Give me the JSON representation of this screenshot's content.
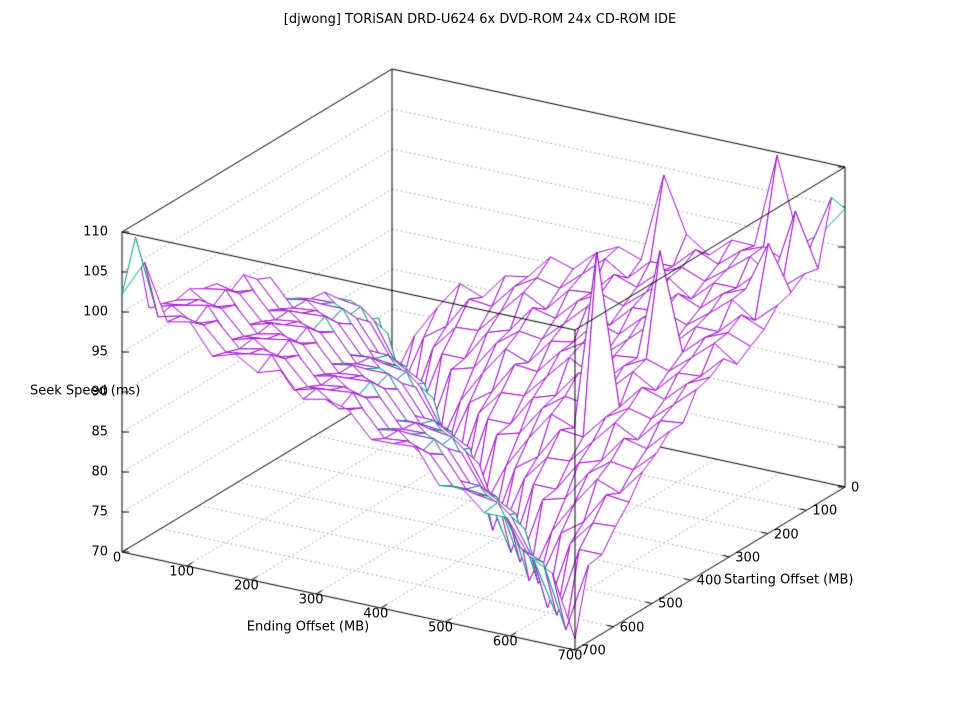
{
  "figure": {
    "title": "[djwong] TORiSAN DRD-U624 6x DVD-ROM 24x CD-ROM IDE",
    "background": "#ffffff"
  },
  "axes": {
    "x": {
      "label": "Ending Offset (MB)",
      "min": 0,
      "max": 700,
      "ticks": [
        0,
        100,
        200,
        300,
        400,
        500,
        600,
        700
      ]
    },
    "y": {
      "label": "Starting Offset (MB)",
      "min": 0,
      "max": 700,
      "ticks": [
        0,
        100,
        200,
        300,
        400,
        500,
        600,
        700
      ]
    },
    "z": {
      "label": "Seek Speed (ms)",
      "min": 70,
      "max": 110,
      "ticks": [
        70,
        75,
        80,
        85,
        90,
        95,
        100,
        105,
        110
      ]
    }
  },
  "style": {
    "surface_top_color": "#a313d3",
    "surface_under_color": "#00a878",
    "border_color": "#000000",
    "grid_color": "#9a9a9a",
    "text_color": "#000000",
    "background": "#ffffff"
  },
  "chart_data": {
    "type": "surface",
    "title": "[djwong] TORiSAN DRD-U624 6x DVD-ROM 24x CD-ROM IDE",
    "xlabel": "Ending Offset (MB)",
    "ylabel": "Starting Offset (MB)",
    "zlabel": "Seek Speed (ms)",
    "xlim": [
      0,
      700
    ],
    "ylim": [
      0,
      700
    ],
    "zlim": [
      70,
      110
    ],
    "grid": true,
    "legend": "none",
    "x_mb": [
      0,
      35,
      70,
      105,
      140,
      175,
      210,
      245,
      280,
      315,
      350,
      385,
      420,
      455,
      490,
      525,
      560,
      595,
      630,
      665,
      700
    ],
    "y_mb": [
      0,
      35,
      70,
      105,
      140,
      175,
      210,
      245,
      280,
      315,
      350,
      385,
      420,
      455,
      490,
      525,
      560,
      595,
      630,
      665,
      700
    ],
    "z_ms_by_start_then_end": [
      [
        70.9,
        77.3,
        81.4,
        85.0,
        83.9,
        87.2,
        87.7,
        90.8,
        89.9,
        92.5,
        93.9,
        92.9,
        104.1,
        97.3,
        95.3,
        97.8,
        97.7,
        109.6,
        99.0,
        101.2,
        104.8
      ],
      [
        79.9,
        71.6,
        78.7,
        80.7,
        84.7,
        84.4,
        87.5,
        89.2,
        88.5,
        90.9,
        93.4,
        91.6,
        94.3,
        94.3,
        97.0,
        95.8,
        98.1,
        99.2,
        98.0,
        100.0,
        107.2
      ],
      [
        80.7,
        79.6,
        70.4,
        79.0,
        82.2,
        82.4,
        85.4,
        88.4,
        86.9,
        89.9,
        90.2,
        93.1,
        92.1,
        94.6,
        95.8,
        94.7,
        96.8,
        99.0,
        96.9,
        105.9,
        99.3
      ],
      [
        84.1,
        82.2,
        77.3,
        72.1,
        79.9,
        79.9,
        83.8,
        84.7,
        88.1,
        87.4,
        90.2,
        91.7,
        90.8,
        93.1,
        95.5,
        93.5,
        96.1,
        96.1,
        98.7,
        97.4,
        99.7
      ],
      [
        85.4,
        85.0,
        79.9,
        78.7,
        71.0,
        79.6,
        80.4,
        84.1,
        86.2,
        85.8,
        88.4,
        91.1,
        89.4,
        92.2,
        92.4,
        95.2,
        94.0,
        96.4,
        97.6,
        103.9,
        98.4
      ],
      [
        87.2,
        84.7,
        84.7,
        80.4,
        79.0,
        70.6,
        77.3,
        81.4,
        85.0,
        83.9,
        87.2,
        87.7,
        90.8,
        89.9,
        92.5,
        93.9,
        92.9,
        95.0,
        97.3,
        95.3,
        97.8
      ],
      [
        87.4,
        87.5,
        86.2,
        82.4,
        81.4,
        79.9,
        71.9,
        78.7,
        80.7,
        84.7,
        84.4,
        87.5,
        89.2,
        88.5,
        90.9,
        93.4,
        91.6,
        94.3,
        94.3,
        97.0,
        95.8
      ],
      [
        88.5,
        88.4,
        88.4,
        83.9,
        83.8,
        80.7,
        79.6,
        70.2,
        79.0,
        82.2,
        82.4,
        85.4,
        88.4,
        86.9,
        89.9,
        90.2,
        104.2,
        92.1,
        94.6,
        95.8,
        94.7
      ],
      [
        89.4,
        89.9,
        87.7,
        88.1,
        84.4,
        84.1,
        82.2,
        77.3,
        71.3,
        79.9,
        79.9,
        83.8,
        84.7,
        88.1,
        87.4,
        90.2,
        91.7,
        90.8,
        93.1,
        95.5,
        93.5
      ],
      [
        93.1,
        89.9,
        90.2,
        89.2,
        85.8,
        85.4,
        85.0,
        79.9,
        78.7,
        70.7,
        79.6,
        80.4,
        84.1,
        86.2,
        85.8,
        88.4,
        91.1,
        89.4,
        92.2,
        92.4,
        95.2
      ],
      [
        93.9,
        90.8,
        90.9,
        91.1,
        86.9,
        87.2,
        84.7,
        84.7,
        80.4,
        79.0,
        71.5,
        77.3,
        81.4,
        85.0,
        83.9,
        106.5,
        87.7,
        90.8,
        89.9,
        92.5,
        93.9
      ],
      [
        95.5,
        91.6,
        92.2,
        90.2,
        90.8,
        87.4,
        87.5,
        86.2,
        82.4,
        81.4,
        79.9,
        70.3,
        78.7,
        80.7,
        84.7,
        84.4,
        87.5,
        89.2,
        88.5,
        90.9,
        93.4
      ],
      [
        94.3,
        95.2,
        92.1,
        92.5,
        91.7,
        88.5,
        88.4,
        88.4,
        83.9,
        83.8,
        80.7,
        79.6,
        72.0,
        79.0,
        82.2,
        82.4,
        85.4,
        88.4,
        86.9,
        89.9,
        90.2
      ],
      [
        96.4,
        95.8,
        92.9,
        93.1,
        93.4,
        89.4,
        89.9,
        87.7,
        88.1,
        84.4,
        84.1,
        82.2,
        77.3,
        70.8,
        79.9,
        79.9,
        83.8,
        84.7,
        88.1,
        87.4,
        90.2
      ],
      [
        96.8,
        97.3,
        93.5,
        94.3,
        92.4,
        93.1,
        89.9,
        90.2,
        89.2,
        85.8,
        85.4,
        85.0,
        79.9,
        78.7,
        71.2,
        79.6,
        80.4,
        84.1,
        86.2,
        85.8,
        88.4
      ],
      [
        97.8,
        96.1,
        97.0,
        94.0,
        94.6,
        93.9,
        90.8,
        90.9,
        91.1,
        86.9,
        87.2,
        84.7,
        84.7,
        80.4,
        79.0,
        70.5,
        77.3,
        81.4,
        85.0,
        83.9,
        87.2
      ],
      [
        97.4,
        98.1,
        97.6,
        94.7,
        95.0,
        95.5,
        91.6,
        92.2,
        90.2,
        90.8,
        87.4,
        87.5,
        86.2,
        82.4,
        81.4,
        79.9,
        71.8,
        78.7,
        80.7,
        84.7,
        84.4
      ],
      [
        98.0,
        98.4,
        99.0,
        95.3,
        96.1,
        94.3,
        95.2,
        92.1,
        92.5,
        91.7,
        88.5,
        88.4,
        88.4,
        83.9,
        83.8,
        80.7,
        79.6,
        70.4,
        79.0,
        82.2,
        82.4
      ],
      [
        98.5,
        99.4,
        97.7,
        98.7,
        95.8,
        96.4,
        95.8,
        92.9,
        93.1,
        93.4,
        89.4,
        89.9,
        87.7,
        88.1,
        84.4,
        84.1,
        82.2,
        77.3,
        71.1,
        79.9,
        79.9
      ],
      [
        108.3,
        99.0,
        99.7,
        99.2,
        96.4,
        96.8,
        97.3,
        93.5,
        94.3,
        92.4,
        93.1,
        89.9,
        90.2,
        89.2,
        85.8,
        85.4,
        85.0,
        79.9,
        78.7,
        70.9,
        79.6
      ],
      [
        102.2,
        106.8,
        100.0,
        100.6,
        96.9,
        97.8,
        96.1,
        97.0,
        94.0,
        94.6,
        93.9,
        90.8,
        90.9,
        91.1,
        86.9,
        87.2,
        84.7,
        84.7,
        80.4,
        79.0,
        71.4
      ]
    ]
  }
}
